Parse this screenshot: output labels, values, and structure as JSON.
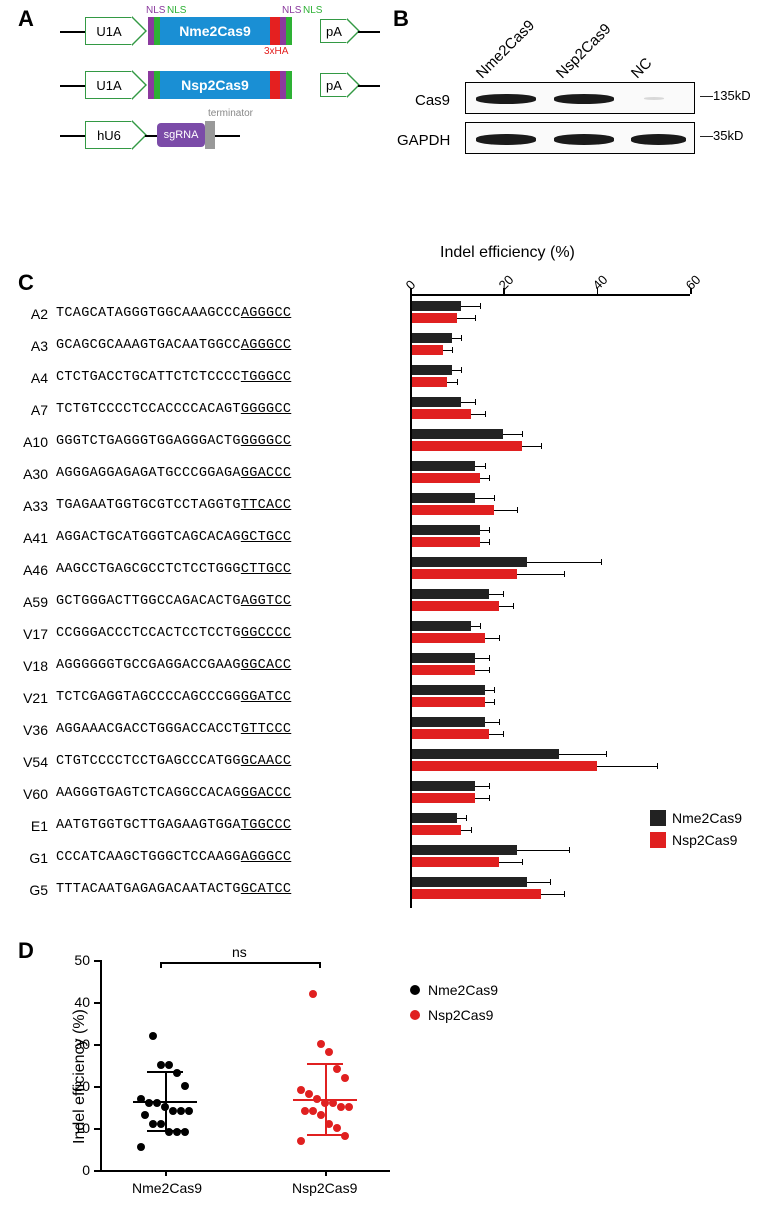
{
  "panelA": {
    "label": "A",
    "constructs": [
      {
        "promoter": "U1A",
        "nls_labels": [
          "NLS",
          "NLS",
          "NLS",
          "NLS"
        ],
        "cas": "Nme2Cas9",
        "tag": "3xHA",
        "pa": "pA"
      },
      {
        "promoter": "U1A",
        "cas": "Nsp2Cas9",
        "pa": "pA"
      },
      {
        "promoter": "hU6",
        "sgrna": "sgRNA",
        "term": "terminator"
      }
    ],
    "colors": {
      "cas_box": "#1a8fd4",
      "nls_purple": "#8b3a9e",
      "nls_green": "#2eb135",
      "ha_red": "#e42020",
      "sgrna": "#7b4ba8",
      "terminator": "#999999",
      "promoter_border": "#339944"
    }
  },
  "panelB": {
    "label": "B",
    "lanes": [
      "Nme2Cas9",
      "Nsp2Cas9",
      "NC"
    ],
    "rows": [
      {
        "label": "Cas9",
        "size": "135kD",
        "intensities": [
          1,
          0.95,
          0.05
        ]
      },
      {
        "label": "GAPDH",
        "size": "35kD",
        "intensities": [
          1,
          1,
          1
        ]
      }
    ]
  },
  "panelC": {
    "label": "C",
    "axis_title": "Indel efficiency (%)",
    "xlim": [
      0,
      60
    ],
    "xticks": [
      0,
      20,
      40,
      60
    ],
    "legend": [
      {
        "label": "Nme2Cas9",
        "color": "#222222"
      },
      {
        "label": "Nsp2Cas9",
        "color": "#e02020"
      }
    ],
    "bar_colors": {
      "nme2": "#222222",
      "nsp2": "#e02020"
    },
    "rows": [
      {
        "id": "A2",
        "seq": "TCAGCATAGGGTGGCAAAGCCC",
        "pam": "AGGGCC",
        "nme2": 11,
        "nsp2": 10,
        "err": [
          4,
          4
        ]
      },
      {
        "id": "A3",
        "seq": "GCAGCGCAAAGTGACAATGGCC",
        "pam": "AGGGCC",
        "nme2": 9,
        "nsp2": 7,
        "err": [
          2,
          2
        ]
      },
      {
        "id": "A4",
        "seq": "CTCTGACCTGCATTCTCTCCCC",
        "pam": "TGGGCC",
        "nme2": 9,
        "nsp2": 8,
        "err": [
          2,
          2
        ]
      },
      {
        "id": "A7",
        "seq": "TCTGTCCCCTCCACCCCACAGT",
        "pam": "GGGGCC",
        "nme2": 11,
        "nsp2": 13,
        "err": [
          3,
          3
        ]
      },
      {
        "id": "A10",
        "seq": "GGGTCTGAGGGTGGAGGGACTG",
        "pam": "GGGGCC",
        "nme2": 20,
        "nsp2": 24,
        "err": [
          4,
          4
        ]
      },
      {
        "id": "A30",
        "seq": "AGGGAGGAGAGATGCCCGGAGA",
        "pam": "GGACCC",
        "nme2": 14,
        "nsp2": 15,
        "err": [
          2,
          2
        ]
      },
      {
        "id": "A33",
        "seq": "TGAGAATGGTGCGTCCTAGGTG",
        "pam": "TTCACC",
        "nme2": 14,
        "nsp2": 18,
        "err": [
          4,
          5
        ]
      },
      {
        "id": "A41",
        "seq": "AGGACTGCATGGGTCAGCACAG",
        "pam": "GCTGCC",
        "nme2": 15,
        "nsp2": 15,
        "err": [
          2,
          2
        ]
      },
      {
        "id": "A46",
        "seq": "AAGCCTGAGCGCCTCTCCTGGG",
        "pam": "CTTGCC",
        "nme2": 25,
        "nsp2": 23,
        "err": [
          16,
          10
        ]
      },
      {
        "id": "A59",
        "seq": "GCTGGGACTTGGCCAGACACTG",
        "pam": "AGGTCC",
        "nme2": 17,
        "nsp2": 19,
        "err": [
          3,
          3
        ]
      },
      {
        "id": "V17",
        "seq": "CCGGGACCCTCCACTCCTCCTG",
        "pam": "GGCCCC",
        "nme2": 13,
        "nsp2": 16,
        "err": [
          2,
          3
        ]
      },
      {
        "id": "V18",
        "seq": "AGGGGGGTGCCGAGGACCGAAG",
        "pam": "GGCACC",
        "nme2": 14,
        "nsp2": 14,
        "err": [
          3,
          3
        ]
      },
      {
        "id": "V21",
        "seq": "TCTCGAGGTAGCCCCAGCCCGG",
        "pam": "GGATCC",
        "nme2": 16,
        "nsp2": 16,
        "err": [
          2,
          2
        ]
      },
      {
        "id": "V36",
        "seq": "AGGAAACGACCTGGGACCACCT",
        "pam": "GTTCCC",
        "nme2": 16,
        "nsp2": 17,
        "err": [
          3,
          3
        ]
      },
      {
        "id": "V54",
        "seq": "CTGTCCCCTCCTGAGCCCATGG",
        "pam": "GCAACC",
        "nme2": 32,
        "nsp2": 40,
        "err": [
          10,
          13
        ]
      },
      {
        "id": "V60",
        "seq": "AAGGGTGAGTCTCAGGCCACAG",
        "pam": "GGACCC",
        "nme2": 14,
        "nsp2": 14,
        "err": [
          3,
          3
        ]
      },
      {
        "id": "E1",
        "seq": "AATGTGGTGCTTGAGAAGTGGA",
        "pam": "TGGCCC",
        "nme2": 10,
        "nsp2": 11,
        "err": [
          2,
          2
        ]
      },
      {
        "id": "G1",
        "seq": "CCCATCAAGCTGGGCTCCAAGG",
        "pam": "AGGGCC",
        "nme2": 23,
        "nsp2": 19,
        "err": [
          11,
          5
        ]
      },
      {
        "id": "G5",
        "seq": "TTTACAATGAGAGACAATACTG",
        "pam": "GCATCC",
        "nme2": 25,
        "nsp2": 28,
        "err": [
          5,
          5
        ]
      }
    ]
  },
  "panelD": {
    "label": "D",
    "ylabel": "Indel efficiency (%)",
    "ylim": [
      0,
      50
    ],
    "yticks": [
      0,
      10,
      20,
      30,
      40,
      50
    ],
    "groups": [
      {
        "label": "Nme2Cas9",
        "color": "#000000",
        "mean": 16.5,
        "sd": 7,
        "points": [
          5.5,
          9,
          9,
          9,
          11,
          11,
          13,
          14,
          14,
          14,
          15,
          16,
          16,
          17,
          20,
          23,
          25,
          25,
          32
        ]
      },
      {
        "label": "Nsp2Cas9",
        "color": "#e02020",
        "mean": 17,
        "sd": 8.5,
        "points": [
          7,
          8,
          10,
          11,
          13,
          14,
          14,
          15,
          15,
          16,
          16,
          17,
          18,
          19,
          22,
          24,
          28,
          30,
          42
        ]
      }
    ],
    "ns": "ns",
    "legend": [
      {
        "label": "Nme2Cas9",
        "color": "#000000"
      },
      {
        "label": "Nsp2Cas9",
        "color": "#e02020"
      }
    ]
  }
}
